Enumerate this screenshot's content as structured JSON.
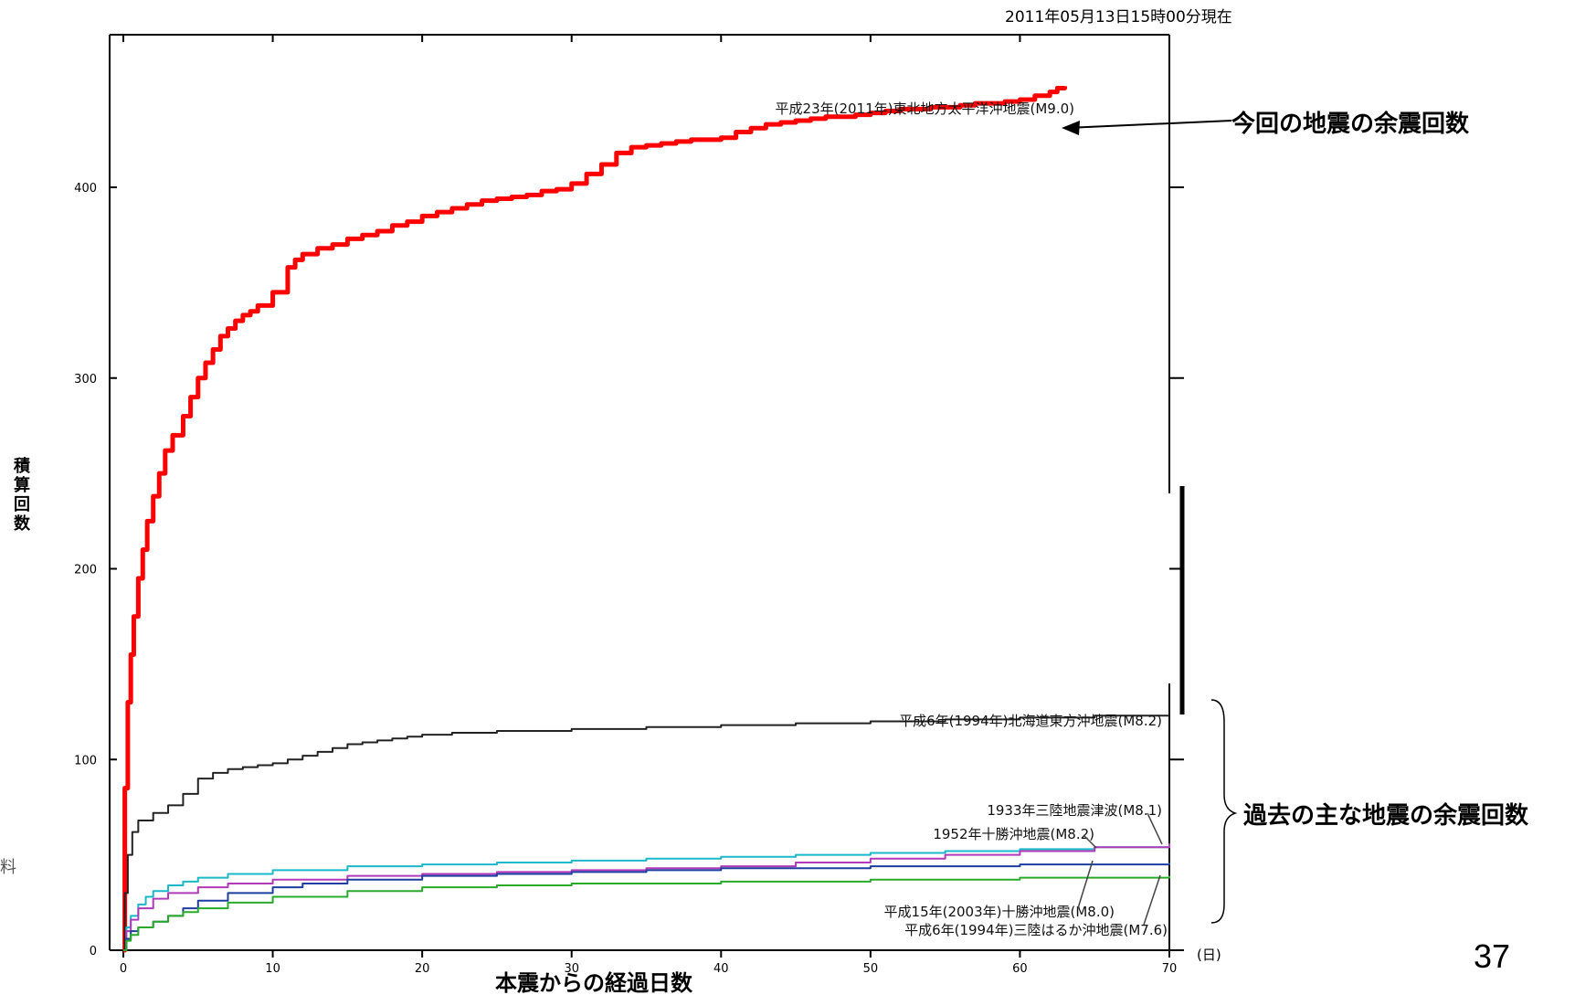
{
  "timestamp": "2011年05月13日15時00分現在",
  "annotations": {
    "current_label": "今回の地震の余震回数",
    "past_label": "過去の主な地震の余震回数"
  },
  "page_number": "37",
  "edge_fragment": "料",
  "chart_data": {
    "type": "line",
    "title": "",
    "xlabel": "本震からの経過日数",
    "xunit": "(日)",
    "ylabel": "積算回数",
    "xlim": [
      0,
      70
    ],
    "ylim": [
      0,
      480
    ],
    "xticks": [
      0,
      10,
      20,
      30,
      40,
      50,
      60,
      70
    ],
    "yticks": [
      0,
      100,
      200,
      300,
      400
    ],
    "grid": false,
    "series": [
      {
        "name": "平成23年(2011年)東北地方太平洋沖地震(M9.0)",
        "color": "#ff0000",
        "x": [
          0,
          0.1,
          0.3,
          0.5,
          0.7,
          1,
          1.3,
          1.6,
          2,
          2.4,
          2.8,
          3.3,
          4,
          4.5,
          5,
          5.5,
          6,
          6.5,
          7,
          7.5,
          8,
          8.5,
          9,
          10,
          11,
          11.5,
          12,
          13,
          14,
          15,
          16,
          17,
          18,
          19,
          20,
          21,
          22,
          23,
          24,
          25,
          26,
          27,
          28,
          29,
          30,
          31,
          32,
          33,
          34,
          35,
          36,
          37,
          38,
          39,
          40,
          41,
          42,
          43,
          44,
          45,
          46,
          47,
          48,
          49,
          50,
          51,
          52,
          53,
          54,
          55,
          56,
          57,
          58,
          59,
          60,
          61,
          62,
          62.5,
          63
        ],
        "y": [
          0,
          85,
          130,
          155,
          175,
          195,
          210,
          225,
          238,
          250,
          262,
          270,
          280,
          290,
          300,
          308,
          315,
          322,
          326,
          330,
          333,
          335,
          338,
          345,
          358,
          362,
          365,
          368,
          370,
          373,
          375,
          377,
          380,
          382,
          385,
          387,
          389,
          391,
          393,
          394,
          395,
          396,
          398,
          399,
          402,
          407,
          412,
          418,
          421,
          422,
          423,
          424,
          425,
          425,
          426,
          429,
          431,
          433,
          434,
          435,
          436,
          437,
          437,
          438,
          439,
          440,
          441,
          441,
          442,
          442,
          443,
          444,
          444,
          445,
          446,
          448,
          450,
          452,
          453
        ]
      },
      {
        "name": "平成6年(1994年)北海道東方沖地震(M8.2)",
        "color": "#222222",
        "x": [
          0,
          0.1,
          0.3,
          0.6,
          1,
          2,
          3,
          4,
          5,
          6,
          7,
          8,
          9,
          10,
          11,
          12,
          13,
          14,
          15,
          16,
          17,
          18,
          19,
          20,
          22,
          25,
          30,
          35,
          40,
          45,
          50,
          55,
          60,
          65,
          70
        ],
        "y": [
          0,
          30,
          50,
          62,
          68,
          72,
          76,
          82,
          90,
          93,
          95,
          96,
          97,
          98,
          100,
          102,
          104,
          106,
          108,
          109,
          110,
          111,
          112,
          113,
          114,
          115,
          116,
          117,
          118,
          119,
          120,
          121,
          122,
          123,
          123
        ]
      },
      {
        "name": "1933年三陸地震津波(M8.1)",
        "color": "#1ab8c8",
        "x": [
          0,
          0.2,
          0.5,
          1,
          1.5,
          2,
          3,
          4,
          5,
          7,
          10,
          15,
          20,
          25,
          30,
          35,
          40,
          45,
          50,
          55,
          60,
          65,
          70
        ],
        "y": [
          0,
          12,
          18,
          24,
          28,
          31,
          34,
          36,
          38,
          40,
          42,
          44,
          45,
          46,
          47,
          48,
          49,
          50,
          51,
          52,
          53,
          54,
          55
        ]
      },
      {
        "name": "1952年十勝沖地震(M8.2)",
        "color": "#b03ab8",
        "x": [
          0,
          0.2,
          0.5,
          1,
          2,
          3,
          5,
          7,
          10,
          15,
          20,
          25,
          30,
          35,
          40,
          45,
          50,
          55,
          60,
          65,
          70
        ],
        "y": [
          0,
          10,
          16,
          22,
          27,
          30,
          33,
          35,
          37,
          39,
          40,
          41,
          42,
          43,
          44,
          46,
          48,
          50,
          52,
          54,
          56
        ]
      },
      {
        "name": "平成15年(2003年)十勝沖地震(M8.0)",
        "color": "#1e3fa0",
        "x": [
          0,
          0.2,
          0.5,
          1,
          2,
          3,
          4,
          5,
          7,
          10,
          12,
          15,
          20,
          25,
          30,
          35,
          40,
          45,
          50,
          55,
          60,
          65,
          70
        ],
        "y": [
          0,
          6,
          10,
          12,
          15,
          18,
          22,
          26,
          30,
          33,
          35,
          37,
          39,
          40,
          41,
          42,
          43,
          43,
          44,
          44,
          45,
          45,
          46
        ]
      },
      {
        "name": "平成6年(1994年)三陸はるか沖地震(M7.6)",
        "color": "#2aaa2a",
        "x": [
          0,
          0.2,
          0.5,
          1,
          2,
          3,
          4,
          5,
          7,
          10,
          15,
          20,
          25,
          30,
          35,
          40,
          45,
          50,
          55,
          60,
          65,
          70
        ],
        "y": [
          0,
          5,
          8,
          12,
          15,
          18,
          20,
          22,
          25,
          28,
          31,
          33,
          34,
          35,
          35,
          36,
          36,
          37,
          37,
          38,
          38,
          39
        ]
      }
    ]
  }
}
